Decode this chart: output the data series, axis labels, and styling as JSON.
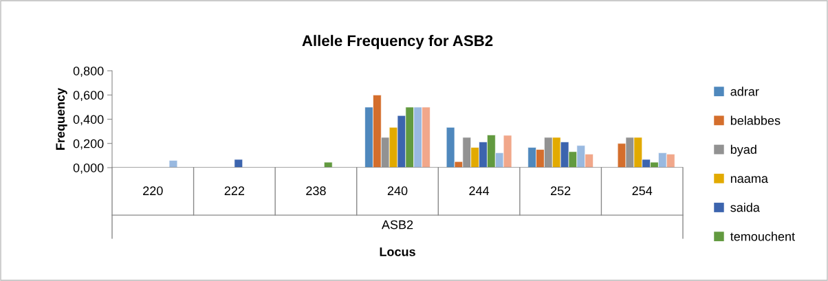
{
  "chart_data": {
    "type": "bar",
    "title": "Allele Frequency for ASB2",
    "xlabel": "Locus",
    "ylabel": "Frequency",
    "categories": [
      "220",
      "222",
      "238",
      "240",
      "244",
      "252",
      "254"
    ],
    "annotations": [
      "ASB2"
    ],
    "series": [
      {
        "name": "adrar",
        "color": "#4f88bd",
        "values": [
          null,
          null,
          null,
          0.5,
          0.333,
          0.167,
          null
        ]
      },
      {
        "name": "belabbes",
        "color": "#d46e2c",
        "values": [
          null,
          null,
          null,
          0.6,
          0.05,
          0.15,
          0.2
        ]
      },
      {
        "name": "byad",
        "color": "#929292",
        "values": [
          null,
          null,
          null,
          0.25,
          0.25,
          0.25,
          0.25
        ]
      },
      {
        "name": "naama",
        "color": "#e2aa00",
        "values": [
          null,
          null,
          null,
          0.333,
          0.167,
          0.25,
          0.25
        ]
      },
      {
        "name": "saida",
        "color": "#3c64ae",
        "values": [
          null,
          0.068,
          null,
          0.43,
          0.212,
          0.212,
          0.068
        ]
      },
      {
        "name": "temouchent",
        "color": "#629a3f",
        "values": [
          null,
          null,
          0.045,
          0.5,
          0.27,
          0.132,
          0.045
        ]
      },
      {
        "color": "#99b9e0",
        "values": [
          0.06,
          null,
          null,
          0.5,
          0.123,
          0.183,
          0.123
        ]
      },
      {
        "color": "#f1a78a",
        "values": [
          null,
          null,
          null,
          0.5,
          0.267,
          0.112,
          0.112
        ]
      }
    ],
    "ylim": [
      0,
      0.8
    ],
    "yticks": [
      {
        "value": 0,
        "label": "0,000"
      },
      {
        "value": 0.2,
        "label": "0,200"
      },
      {
        "value": 0.4,
        "label": "0,400"
      },
      {
        "value": 0.6,
        "label": "0,600"
      },
      {
        "value": 0.8,
        "label": "0,800"
      }
    ],
    "legend": "right",
    "grid": false
  }
}
